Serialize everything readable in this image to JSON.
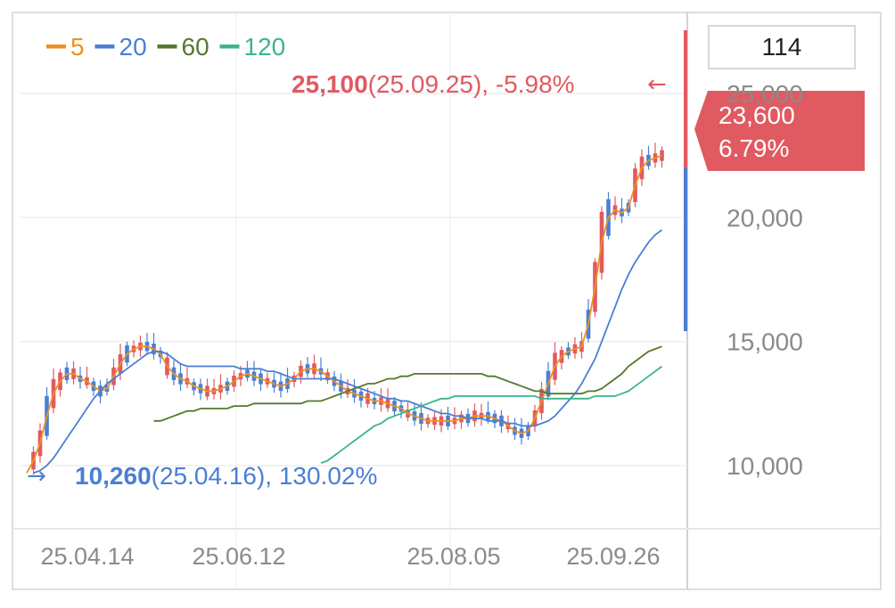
{
  "legend": [
    {
      "label": "5",
      "color": "#f0901e"
    },
    {
      "label": "20",
      "color": "#4a7fd4"
    },
    {
      "label": "60",
      "color": "#56782e"
    },
    {
      "label": "120",
      "color": "#3db58a"
    }
  ],
  "top_box_value": "114",
  "high_annotation": {
    "price": "25,100",
    "date": "(25.09.25),",
    "pct": "-5.98%",
    "arrow": "←"
  },
  "low_annotation": {
    "arrow": "→",
    "price": "10,260",
    "date": "(25.04.16),",
    "pct": "130.02%"
  },
  "current_badge": {
    "price": "23,600",
    "pct": "6.79%",
    "color": "#e05a61"
  },
  "colors": {
    "up": "#e05a61",
    "down": "#4a7fd4",
    "grid": "#eeeeee",
    "axis_text": "#8a8a8a"
  },
  "chart_data": {
    "type": "candlestick",
    "y_ticks": [
      "25,000",
      "20,000",
      "15,000",
      "10,000"
    ],
    "y_tick_values": [
      25000,
      20000,
      15000,
      10000
    ],
    "ylim": [
      8000,
      27000
    ],
    "x_ticks": [
      "25.04.14",
      "25.06.12",
      "25.08.05",
      "25.09.26"
    ],
    "series": [
      {
        "name": "5",
        "values": [
          9700,
          10200,
          10900,
          12000,
          12900,
          13400,
          13700,
          13700,
          13500,
          13400,
          13200,
          13000,
          13100,
          13600,
          14100,
          14500,
          14700,
          14800,
          14800,
          14700,
          14500,
          14000,
          13700,
          13500,
          13400,
          13200,
          13100,
          13000,
          13000,
          13100,
          13200,
          13400,
          13600,
          13700,
          13600,
          13500,
          13400,
          13300,
          13200,
          13300,
          13500,
          13800,
          13900,
          13900,
          13800,
          13600,
          13400,
          13200,
          13000,
          12900,
          12800,
          12700,
          12600,
          12600,
          12500,
          12400,
          12300,
          12100,
          12000,
          11900,
          11800,
          11800,
          11800,
          11800,
          11800,
          11900,
          11900,
          12000,
          12000,
          12000,
          11900,
          11800,
          11600,
          11400,
          11300,
          11400,
          11900,
          12600,
          13300,
          14000,
          14400,
          14600,
          14700,
          14800,
          15700,
          17200,
          19000,
          20000,
          20300,
          20200,
          20400,
          21300,
          22000,
          22300,
          22400,
          22500
        ]
      },
      {
        "name": "20",
        "values": [
          9700,
          9800,
          10000,
          10300,
          10700,
          11100,
          11500,
          11900,
          12300,
          12700,
          13000,
          13300,
          13500,
          13700,
          13900,
          14100,
          14300,
          14500,
          14600,
          14600,
          14500,
          14300,
          14100,
          14000,
          14000,
          14000,
          14000,
          14000,
          14000,
          14000,
          14000,
          13900,
          13900,
          13900,
          13900,
          13800,
          13800,
          13700,
          13600,
          13500,
          13500,
          13500,
          13500,
          13500,
          13500,
          13500,
          13400,
          13300,
          13200,
          13100,
          13000,
          12900,
          12800,
          12700,
          12700,
          12600,
          12600,
          12500,
          12400,
          12300,
          12200,
          12100,
          12100,
          12000,
          12000,
          11900,
          11900,
          11900,
          11800,
          11800,
          11800,
          11700,
          11700,
          11600,
          11600,
          11600,
          11700,
          11800,
          12000,
          12300,
          12600,
          12900,
          13300,
          13800,
          14300,
          15000,
          15700,
          16400,
          17100,
          17700,
          18200,
          18600,
          19000,
          19300,
          19500
        ]
      },
      {
        "name": "60",
        "values": [
          11800,
          11800,
          11900,
          12000,
          12100,
          12200,
          12200,
          12300,
          12300,
          12300,
          12300,
          12300,
          12400,
          12400,
          12400,
          12500,
          12500,
          12500,
          12500,
          12500,
          12500,
          12500,
          12500,
          12600,
          12600,
          12600,
          12700,
          12800,
          12900,
          13000,
          13100,
          13200,
          13300,
          13300,
          13400,
          13500,
          13500,
          13600,
          13600,
          13700,
          13700,
          13700,
          13700,
          13700,
          13700,
          13700,
          13700,
          13700,
          13700,
          13700,
          13600,
          13600,
          13500,
          13400,
          13300,
          13200,
          13100,
          13000,
          13000,
          12900,
          12900,
          12900,
          12900,
          12900,
          12900,
          13000,
          13000,
          13100,
          13300,
          13500,
          13700,
          14000,
          14200,
          14400,
          14600,
          14700,
          14800
        ]
      },
      {
        "name": "120",
        "values": [
          10100,
          10200,
          10400,
          10600,
          10800,
          11000,
          11200,
          11400,
          11600,
          11700,
          11900,
          12000,
          12100,
          12200,
          12300,
          12400,
          12500,
          12600,
          12700,
          12700,
          12800,
          12800,
          12800,
          12800,
          12800,
          12800,
          12800,
          12800,
          12800,
          12800,
          12800,
          12800,
          12800,
          12700,
          12700,
          12700,
          12700,
          12700,
          12700,
          12700,
          12700,
          12800,
          12800,
          12800,
          12800,
          12900,
          13000,
          13200,
          13400,
          13600,
          13800,
          14000
        ]
      }
    ]
  }
}
